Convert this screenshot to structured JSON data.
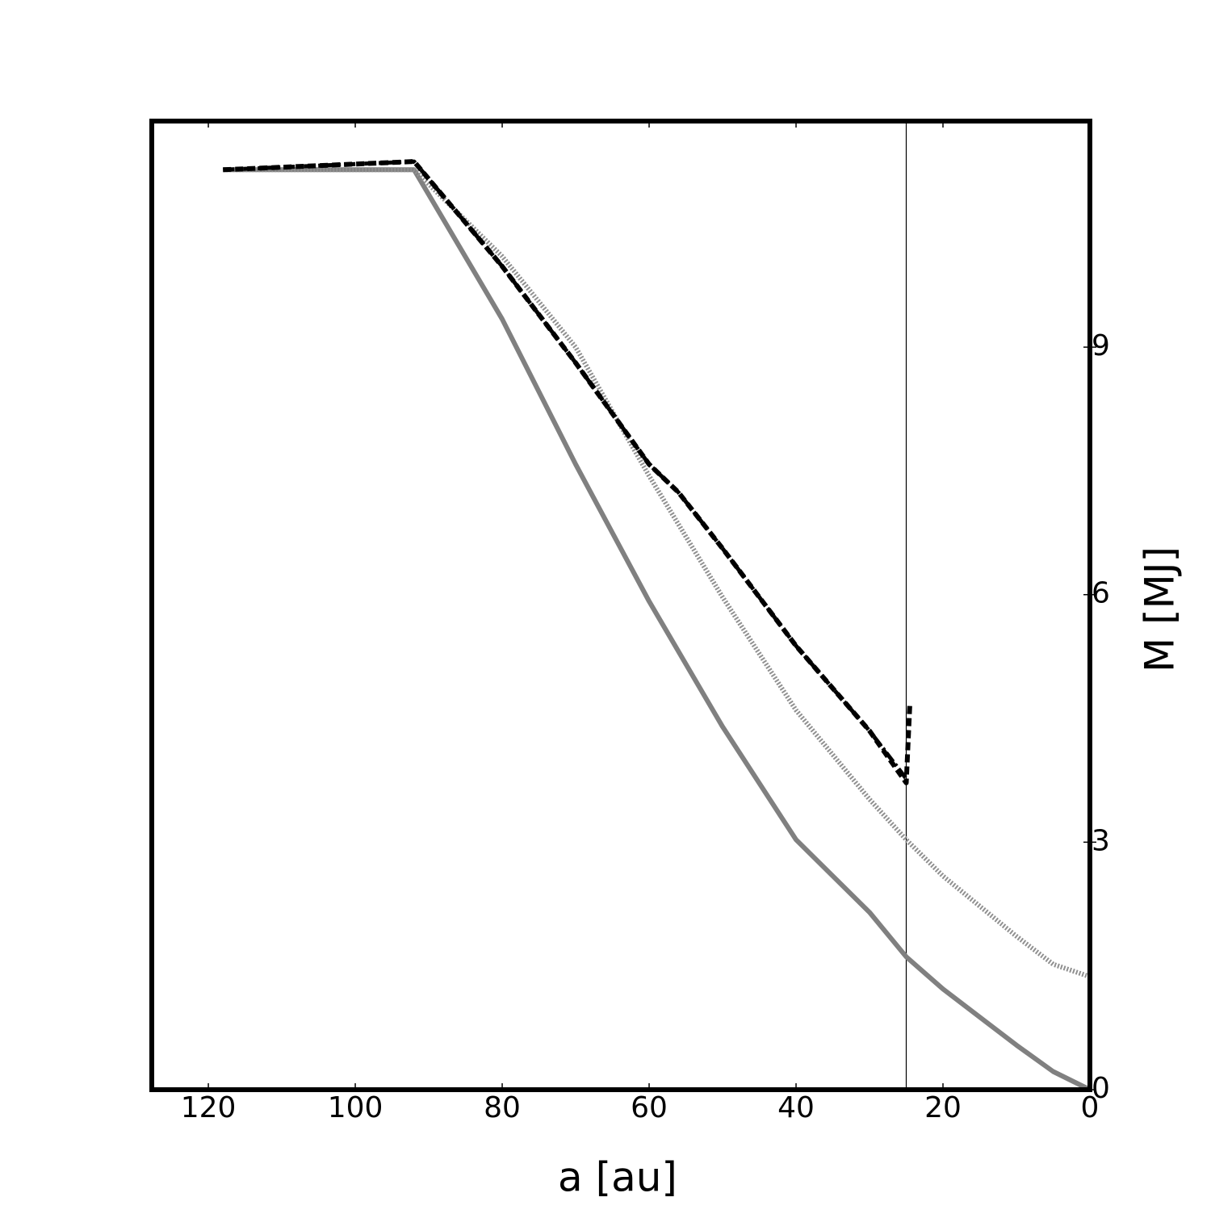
{
  "chart_data": {
    "type": "line",
    "xlabel": "a [au]",
    "ylabel": "M [MJ]",
    "xlim": [
      127.7,
      0
    ],
    "xticks": [
      120,
      100,
      80,
      60,
      40,
      20,
      0
    ],
    "ylim": [
      0,
      11.74
    ],
    "yticks": [
      0,
      3,
      6,
      9
    ],
    "vline": 25,
    "series": [
      {
        "color": "#808080",
        "style": "solid",
        "x": [
          118,
          92,
          80,
          70,
          60,
          50,
          40,
          30,
          25,
          20,
          10,
          5,
          0
        ],
        "values": [
          11.15,
          11.15,
          9.34,
          7.58,
          5.92,
          4.4,
          3.03,
          2.15,
          1.61,
          1.22,
          0.54,
          0.22,
          0
        ]
      },
      {
        "color": "#909090",
        "style": "dotted",
        "x": [
          118,
          92,
          80,
          70,
          60,
          50,
          40,
          30,
          25,
          20,
          10,
          5,
          0
        ],
        "values": [
          11.15,
          11.15,
          10.1,
          9.0,
          7.44,
          5.97,
          4.6,
          3.52,
          3.03,
          2.59,
          1.86,
          1.52,
          1.37
        ]
      },
      {
        "color": "#000000",
        "style": "dashed",
        "x": [
          118,
          92,
          80,
          70,
          60,
          56,
          50,
          40,
          30,
          25,
          24.5
        ],
        "values": [
          11.15,
          11.25,
          9.98,
          8.81,
          7.58,
          7.24,
          6.56,
          5.38,
          4.35,
          3.72,
          4.7
        ]
      },
      {
        "color": "#000000",
        "style": "dashdot",
        "x": [
          118,
          92,
          80,
          70,
          60,
          56,
          50,
          40,
          30,
          25
        ],
        "values": [
          11.15,
          11.25,
          9.98,
          8.81,
          7.58,
          7.24,
          6.56,
          5.38,
          4.35,
          3.77
        ]
      }
    ]
  }
}
